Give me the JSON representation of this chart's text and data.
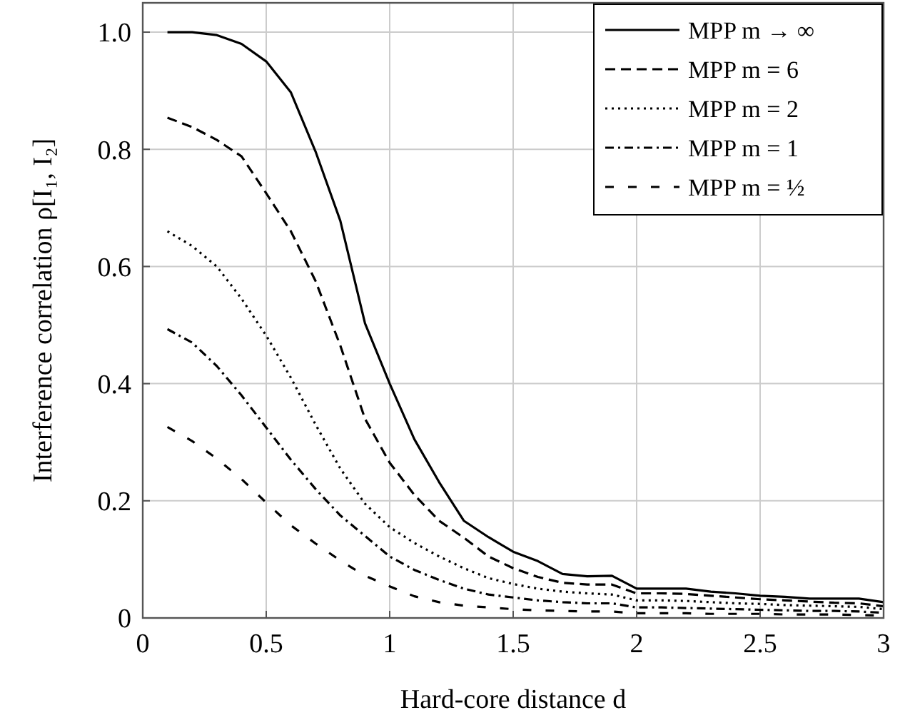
{
  "chart_data": {
    "type": "line",
    "xlabel": "Hard-core distance d",
    "ylabel": "Interference correlation ρ[I₁, I₂]",
    "x": [
      0.1,
      0.2,
      0.3,
      0.4,
      0.5,
      0.6,
      0.7,
      0.8,
      0.9,
      1.0,
      1.1,
      1.2,
      1.3,
      1.4,
      1.5,
      1.6,
      1.7,
      1.8,
      1.9,
      2.0,
      2.1,
      2.2,
      2.3,
      2.4,
      2.5,
      2.6,
      2.7,
      2.8,
      2.9,
      3.0
    ],
    "series": [
      {
        "name": "MPP m → ∞",
        "color": "#000000",
        "line_style": "solid",
        "values": [
          1.0,
          1.0,
          0.995,
          0.98,
          0.95,
          0.897,
          0.796,
          0.678,
          0.503,
          0.4,
          0.305,
          0.232,
          0.166,
          0.138,
          0.113,
          0.097,
          0.075,
          0.071,
          0.072,
          0.05,
          0.05,
          0.05,
          0.045,
          0.042,
          0.038,
          0.036,
          0.033,
          0.033,
          0.033,
          0.027
        ]
      },
      {
        "name": "MPP m = 6",
        "color": "#000000",
        "line_style": "dashed",
        "values": [
          0.854,
          0.838,
          0.816,
          0.788,
          0.725,
          0.66,
          0.575,
          0.465,
          0.34,
          0.265,
          0.21,
          0.166,
          0.137,
          0.105,
          0.085,
          0.07,
          0.06,
          0.057,
          0.057,
          0.042,
          0.042,
          0.041,
          0.038,
          0.035,
          0.032,
          0.03,
          0.028,
          0.026,
          0.025,
          0.02
        ]
      },
      {
        "name": "MPP m = 2",
        "color": "#000000",
        "line_style": "dotted",
        "values": [
          0.66,
          0.635,
          0.6,
          0.545,
          0.482,
          0.41,
          0.33,
          0.255,
          0.195,
          0.155,
          0.128,
          0.105,
          0.085,
          0.068,
          0.058,
          0.05,
          0.045,
          0.042,
          0.04,
          0.03,
          0.03,
          0.029,
          0.027,
          0.025,
          0.024,
          0.022,
          0.021,
          0.02,
          0.019,
          0.015
        ]
      },
      {
        "name": "MPP m = 1",
        "color": "#000000",
        "line_style": "dashdot",
        "values": [
          0.493,
          0.47,
          0.43,
          0.38,
          0.325,
          0.27,
          0.22,
          0.175,
          0.14,
          0.105,
          0.082,
          0.065,
          0.05,
          0.04,
          0.035,
          0.03,
          0.027,
          0.025,
          0.025,
          0.018,
          0.018,
          0.017,
          0.016,
          0.015,
          0.014,
          0.013,
          0.012,
          0.012,
          0.011,
          0.009
        ]
      },
      {
        "name": "MPP m = ½",
        "color": "#000000",
        "line_style": "loosely dashed",
        "values": [
          0.326,
          0.302,
          0.272,
          0.237,
          0.197,
          0.158,
          0.127,
          0.098,
          0.072,
          0.054,
          0.037,
          0.027,
          0.021,
          0.018,
          0.015,
          0.013,
          0.012,
          0.011,
          0.011,
          0.008,
          0.008,
          0.008,
          0.007,
          0.007,
          0.007,
          0.006,
          0.006,
          0.006,
          0.005,
          0.004
        ]
      }
    ],
    "xlim": [
      0,
      3
    ],
    "xticks": [
      0,
      0.5,
      1,
      1.5,
      2,
      2.5,
      3
    ],
    "ylim": [
      0,
      1.05
    ],
    "yticks": [
      {
        "value": 0,
        "label": "0"
      },
      {
        "value": 0.2,
        "label": "0.2"
      },
      {
        "value": 0.4,
        "label": "0.4"
      },
      {
        "value": 0.6,
        "label": "0.6"
      },
      {
        "value": 0.8,
        "label": "0.8"
      },
      {
        "value": 1,
        "label": "1.0"
      }
    ],
    "grid": true,
    "legend": "top right",
    "marker": "none"
  }
}
